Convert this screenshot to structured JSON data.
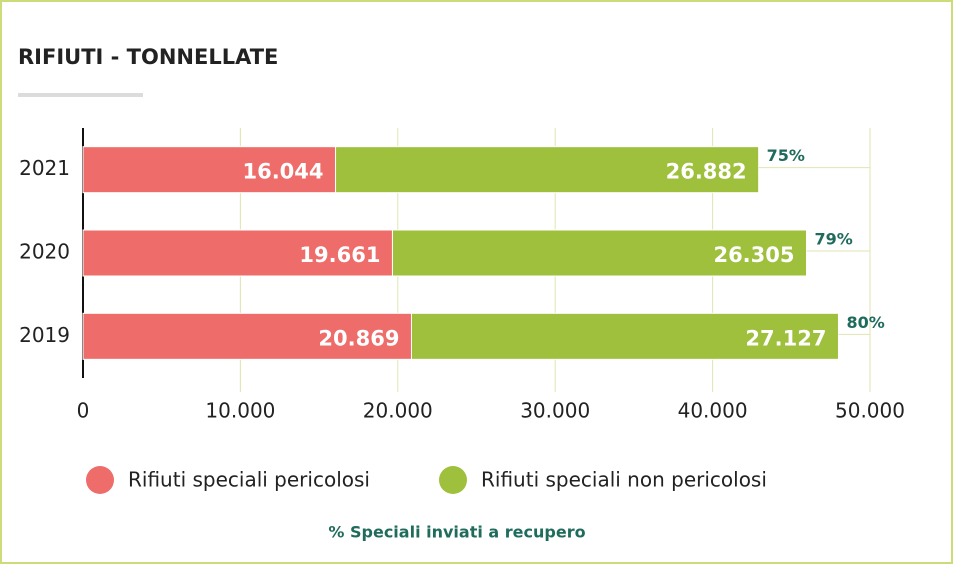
{
  "chart_data": {
    "type": "stacked-barh",
    "title": "RIFIUTI - TONNELLATE",
    "categories": [
      "2021",
      "2020",
      "2019"
    ],
    "series": [
      {
        "name": "Rifiuti speciali pericolosi",
        "color": "#ee6d6a",
        "values": [
          16044,
          19661,
          20869
        ],
        "value_labels": [
          "16.044",
          "19.661",
          "20.869"
        ]
      },
      {
        "name": "Rifiuti speciali non pericolosi",
        "color": "#9fc03c",
        "values": [
          26882,
          26305,
          27127
        ],
        "value_labels": [
          "26.882",
          "26.305",
          "27.127"
        ]
      }
    ],
    "annotations": {
      "name": "% Speciali inviati a recupero",
      "color": "#1f6b5c",
      "values": [
        75,
        79,
        80
      ],
      "value_labels": [
        "75%",
        "79%",
        "80%"
      ]
    },
    "xlim": [
      0,
      50000
    ],
    "xticks": [
      0,
      {
        "value": 10000,
        "label": "10.000"
      },
      {
        "value": 20000,
        "label": "20.000"
      },
      {
        "value": 30000,
        "label": "30.000"
      },
      {
        "value": 40000,
        "label": "40.000"
      },
      {
        "value": 50000,
        "label": "50.000"
      }
    ],
    "grid": true,
    "legend": "bottom"
  }
}
